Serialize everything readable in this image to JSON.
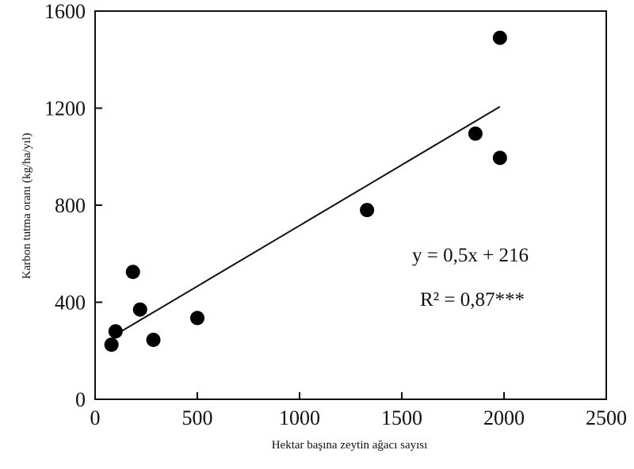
{
  "chart_data": {
    "type": "scatter",
    "title": "",
    "xlabel": "Hektar başına zeytin ağacı sayısı",
    "ylabel": "Karbon tutma oranı (kg/ha/yıl)",
    "xlim": [
      0,
      2500
    ],
    "ylim": [
      0,
      1600
    ],
    "xticks": [
      "0",
      "500",
      "1000",
      "1500",
      "2000",
      "2500"
    ],
    "yticks": [
      "0",
      "400",
      "800",
      "1200",
      "1600"
    ],
    "grid": false,
    "points": [
      {
        "x": 80,
        "y": 225
      },
      {
        "x": 100,
        "y": 280
      },
      {
        "x": 185,
        "y": 525
      },
      {
        "x": 220,
        "y": 370
      },
      {
        "x": 285,
        "y": 245
      },
      {
        "x": 500,
        "y": 335
      },
      {
        "x": 1330,
        "y": 780
      },
      {
        "x": 1860,
        "y": 1095
      },
      {
        "x": 1980,
        "y": 1490
      },
      {
        "x": 1980,
        "y": 995
      }
    ],
    "trendline": {
      "slope": 0.5,
      "intercept": 216,
      "x_range": [
        100,
        1980
      ]
    },
    "annotations": {
      "equation": "y = 0,5x + 216",
      "r_squared": "R² = 0,87***"
    }
  }
}
